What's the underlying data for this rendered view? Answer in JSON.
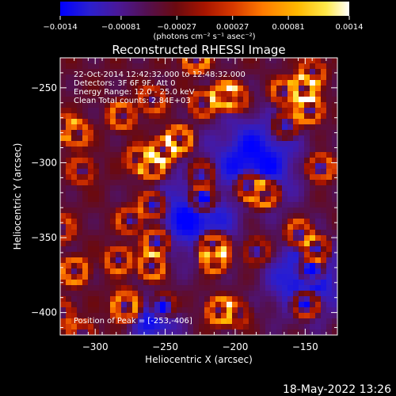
{
  "colorbar": {
    "tick_labels": [
      "-0.0014",
      "-0.00081",
      "-0.00027",
      "0.00027",
      "0.00081",
      "0.0014"
    ],
    "range": [
      -0.0014,
      0.0014
    ],
    "unit_label": "(photons cm⁻² s⁻¹ asec⁻²)"
  },
  "chart_data": {
    "type": "heatmap",
    "title": "Reconstructed RHESSI Image",
    "xlabel": "Heliocentric X (arcsec)",
    "ylabel": "Heliocentric Y (arcsec)",
    "xlim": [
      -325,
      -127
    ],
    "ylim": [
      -415,
      -230
    ],
    "x_ticks": [
      -300,
      -250,
      -200,
      -150
    ],
    "y_ticks": [
      -250,
      -300,
      -350,
      -400
    ],
    "x_tick_labels": [
      "−300",
      "−250",
      "−200",
      "−150"
    ],
    "y_tick_labels": [
      "−250",
      "−300",
      "−350",
      "−400"
    ],
    "annotations": [
      "22-Oct-2014 12:42:32.000 to 12:48:32.000",
      "Detectors: 3F 6F 9F, Att 0",
      "Energy Range: 12.0 - 25.0 keV",
      "Clean    Total counts: 2.84E+03"
    ],
    "peak_label": "Position of Peak = [-253,-406]",
    "peak_position": [
      -253,
      -406
    ],
    "colormap": "hot (black-blue-purple-red-orange-yellow-white)"
  },
  "footer": {
    "date": "18-May-2022 13:26"
  }
}
